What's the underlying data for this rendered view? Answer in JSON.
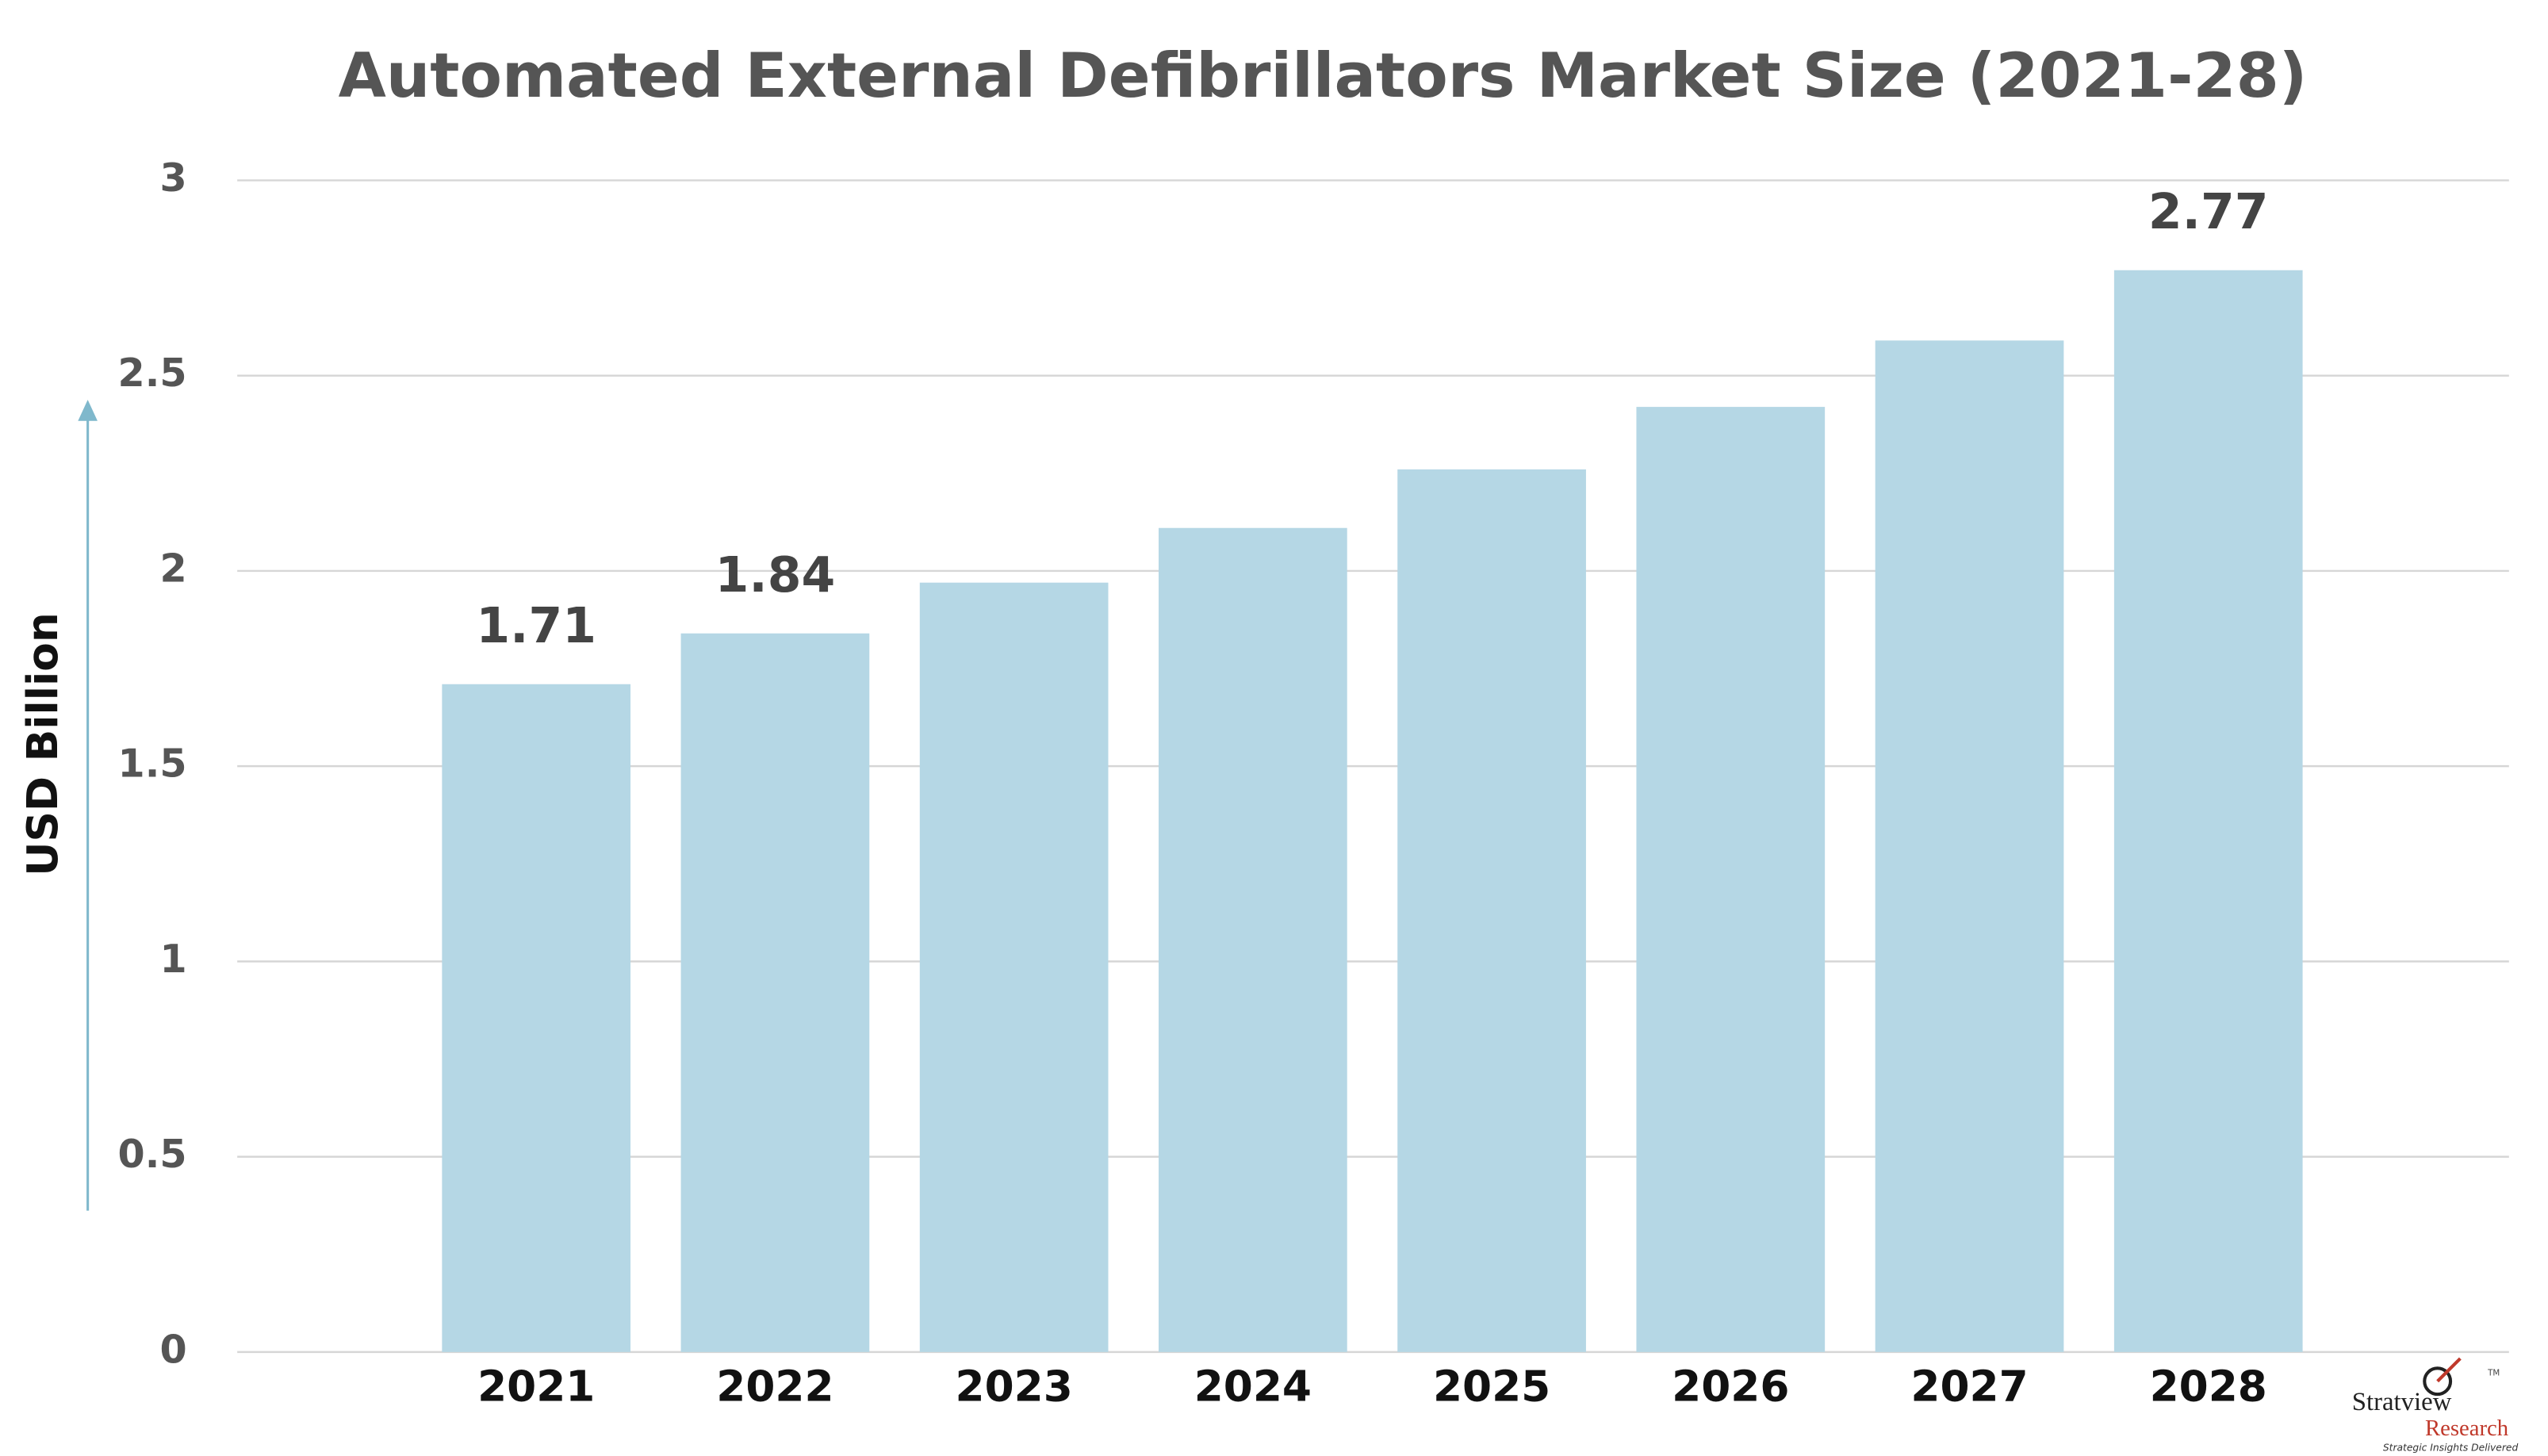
{
  "chart_data": {
    "type": "bar",
    "title": "Automated External Defibrillators Market Size (2021-28)",
    "y_label": "USD Billion",
    "categories": [
      "2021",
      "2022",
      "2023",
      "2024",
      "2025",
      "2026",
      "2027",
      "2028"
    ],
    "values": [
      1.71,
      1.84,
      1.97,
      2.11,
      2.26,
      2.42,
      2.59,
      2.77
    ],
    "value_labels": [
      "1.71",
      "1.84",
      null,
      null,
      null,
      null,
      null,
      "2.77"
    ],
    "color": "#b5d7e5",
    "ylim": [
      0,
      3
    ],
    "yticks": [
      0,
      0.5,
      1,
      1.5,
      2,
      2.5,
      3
    ],
    "grid": true
  },
  "logo": {
    "name": "Stratview",
    "sub": "Research",
    "tagline": "Strategic Insights Delivered",
    "mark": "TM"
  }
}
